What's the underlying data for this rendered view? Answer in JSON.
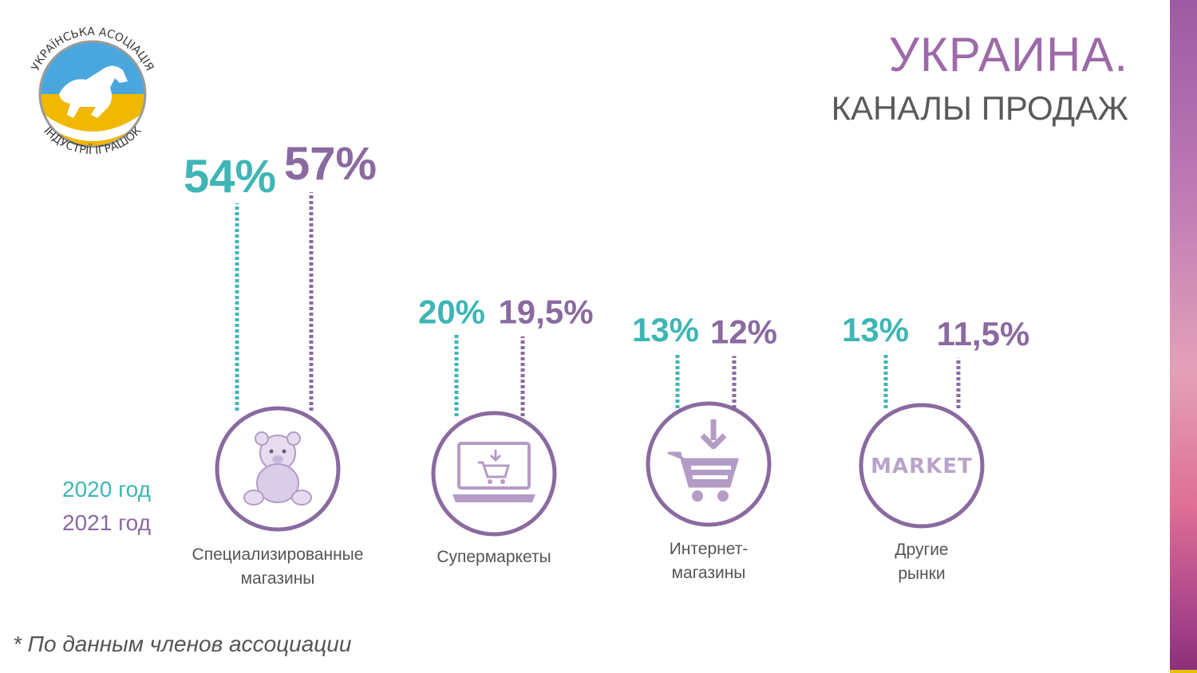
{
  "header": {
    "title": "УКРАИНА.",
    "subtitle": "КАНАЛЫ ПРОДАЖ"
  },
  "logo": {
    "text_top": "УКРАЇНСЬКА АСОЦІАЦІЯ",
    "text_bottom": "ІНДУСТРІЇ ІГРАШОК",
    "icon": "rocking-horse-icon"
  },
  "legend": {
    "series_a": "2020 год",
    "series_b": "2021 год"
  },
  "colors": {
    "series_a": "#3fb5b5",
    "series_b": "#8a6aa0",
    "ring": "#8a6aa0",
    "icon": "#b49cc6"
  },
  "chart_data": {
    "type": "bar",
    "categories": [
      "Специализированные магазины",
      "Супермаркеты",
      "Интернет-магазины",
      "Другие рынки"
    ],
    "category_lines": [
      [
        "Специализированные",
        "магазины"
      ],
      [
        "Супермаркеты"
      ],
      [
        "Интернет-",
        "магазины"
      ],
      [
        "Другие",
        "рынки"
      ]
    ],
    "category_icons": [
      "teddy-bear-icon",
      "laptop-cart-icon",
      "shopping-cart-icon",
      "market-icon"
    ],
    "series": [
      {
        "name": "2020 год",
        "values": [
          54,
          20,
          13,
          13
        ],
        "labels": [
          "54%",
          "20%",
          "13%",
          "13%"
        ]
      },
      {
        "name": "2021 год",
        "values": [
          57,
          19.5,
          12,
          11.5
        ],
        "labels": [
          "57%",
          "19,5%",
          "12%",
          "11,5%"
        ]
      }
    ],
    "market_text": "MARKET",
    "unit": "%"
  },
  "footnote": "* По данным членов ассоциации"
}
